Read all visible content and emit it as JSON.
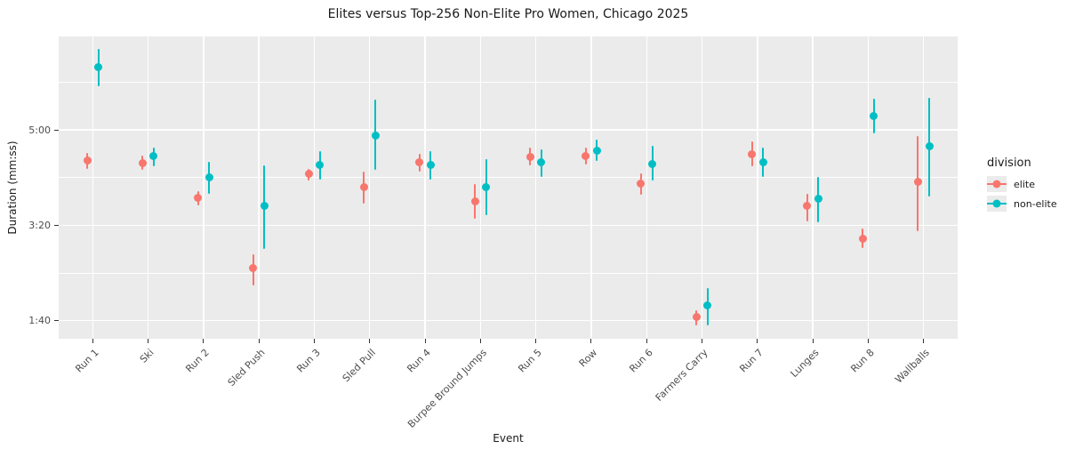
{
  "chart_data": {
    "type": "pointrange",
    "title": "Elites versus Top-256 Non-Elite Pro Women, Chicago 2025",
    "xlabel": "Event",
    "ylabel": "Duration (mm:ss)",
    "legend": {
      "title": "division",
      "position": "right"
    },
    "panel_bg": "#ebebeb",
    "grid_color": "#ffffff",
    "categories": [
      "Run 1",
      "Ski",
      "Run 2",
      "Sled Push",
      "Run 3",
      "Sled Pull",
      "Run 4",
      "Burpee Bround Jumps",
      "Run 5",
      "Row",
      "Run 6",
      "Farmers Carry",
      "Run 7",
      "Lunges",
      "Run 8",
      "Wallballs"
    ],
    "y_axis": {
      "unit": "seconds",
      "lim": [
        81,
        398
      ],
      "major_ticks": [
        {
          "seconds": 100,
          "label": "1:40"
        },
        {
          "seconds": 200,
          "label": "3:20"
        },
        {
          "seconds": 300,
          "label": "5:00"
        }
      ],
      "minor_ticks": [
        150,
        250,
        350
      ]
    },
    "series": [
      {
        "name": "elite",
        "color": "#F8766D",
        "values_seconds": [
          268,
          265,
          229,
          155,
          254,
          240,
          266,
          225,
          272,
          273,
          244,
          104,
          274,
          220,
          186,
          246
        ],
        "lo_seconds": [
          259,
          258,
          221,
          137,
          247,
          223,
          256,
          207,
          263,
          264,
          232,
          95,
          262,
          204,
          176,
          194
        ],
        "hi_seconds": [
          276,
          273,
          236,
          170,
          259,
          256,
          275,
          243,
          281,
          281,
          254,
          111,
          288,
          233,
          197,
          294
        ]
      },
      {
        "name": "non-elite",
        "color": "#00BFC4",
        "values_seconds": [
          366,
          273,
          250,
          220,
          263,
          294,
          263,
          240,
          266,
          278,
          264,
          116,
          266,
          228,
          315,
          283
        ],
        "lo_seconds": [
          346,
          262,
          233,
          175,
          248,
          258,
          248,
          211,
          251,
          267,
          247,
          95,
          251,
          203,
          296,
          230
        ],
        "hi_seconds": [
          385,
          281,
          267,
          263,
          278,
          332,
          278,
          269,
          280,
          290,
          283,
          134,
          281,
          251,
          333,
          334
        ]
      }
    ]
  }
}
